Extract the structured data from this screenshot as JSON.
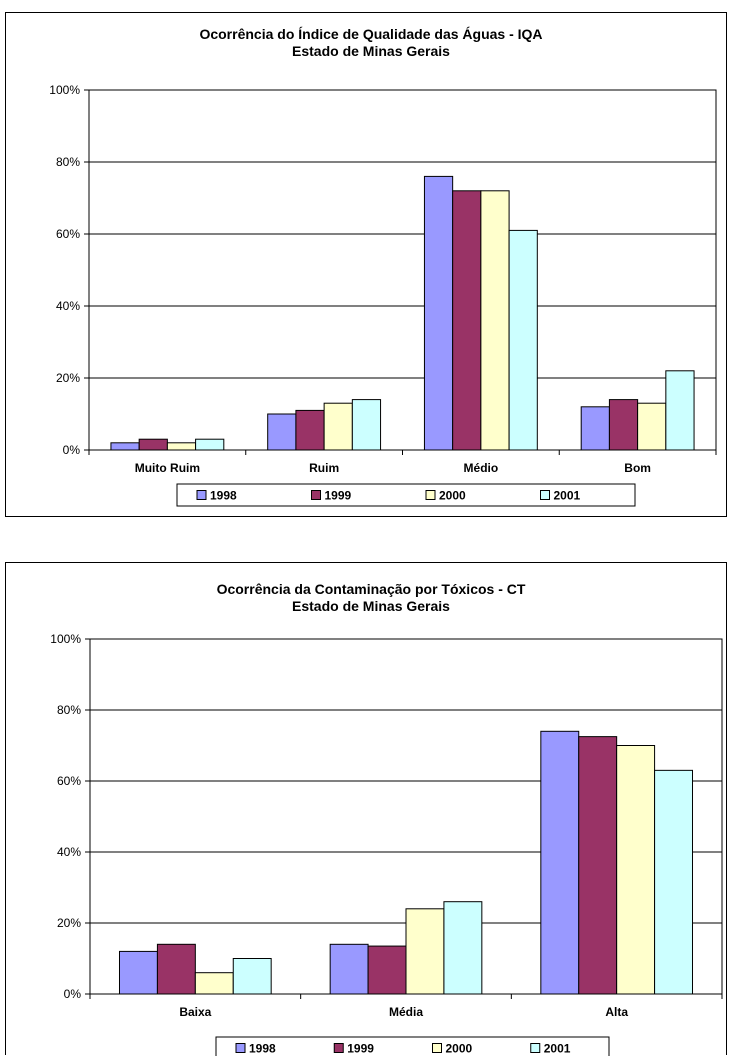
{
  "chart_data": [
    {
      "type": "bar",
      "title": "Ocorrência do Índice de Qualidade das Águas - IQA",
      "subtitle": "Estado de Minas Gerais",
      "categories": [
        "Muito Ruim",
        "Ruim",
        "Médio",
        "Bom"
      ],
      "series": [
        {
          "name": "1998",
          "color": "#9999ff",
          "values": [
            2,
            10,
            76,
            12
          ]
        },
        {
          "name": "1999",
          "color": "#993366",
          "values": [
            3,
            11,
            72,
            14
          ]
        },
        {
          "name": "2000",
          "color": "#ffffcc",
          "values": [
            2,
            13,
            72,
            13
          ]
        },
        {
          "name": "2001",
          "color": "#ccffff",
          "values": [
            3,
            14,
            61,
            22
          ]
        }
      ],
      "ylim": [
        0,
        100
      ],
      "yticks": [
        "0%",
        "20%",
        "40%",
        "60%",
        "80%",
        "100%"
      ],
      "grid": true,
      "legend": "bottom"
    },
    {
      "type": "bar",
      "title": "Ocorrência da Contaminação por Tóxicos - CT",
      "subtitle": "Estado de Minas Gerais",
      "categories": [
        "Baixa",
        "Média",
        "Alta"
      ],
      "series": [
        {
          "name": "1998",
          "color": "#9999ff",
          "values": [
            12,
            14,
            74
          ]
        },
        {
          "name": "1999",
          "color": "#993366",
          "values": [
            14,
            13.5,
            72.5
          ]
        },
        {
          "name": "2000",
          "color": "#ffffcc",
          "values": [
            6,
            24,
            70
          ]
        },
        {
          "name": "2001",
          "color": "#ccffff",
          "values": [
            10,
            26,
            63
          ]
        }
      ],
      "ylim": [
        0,
        100
      ],
      "yticks": [
        "0%",
        "20%",
        "40%",
        "60%",
        "80%",
        "100%"
      ],
      "grid": true,
      "legend": "bottom"
    }
  ]
}
